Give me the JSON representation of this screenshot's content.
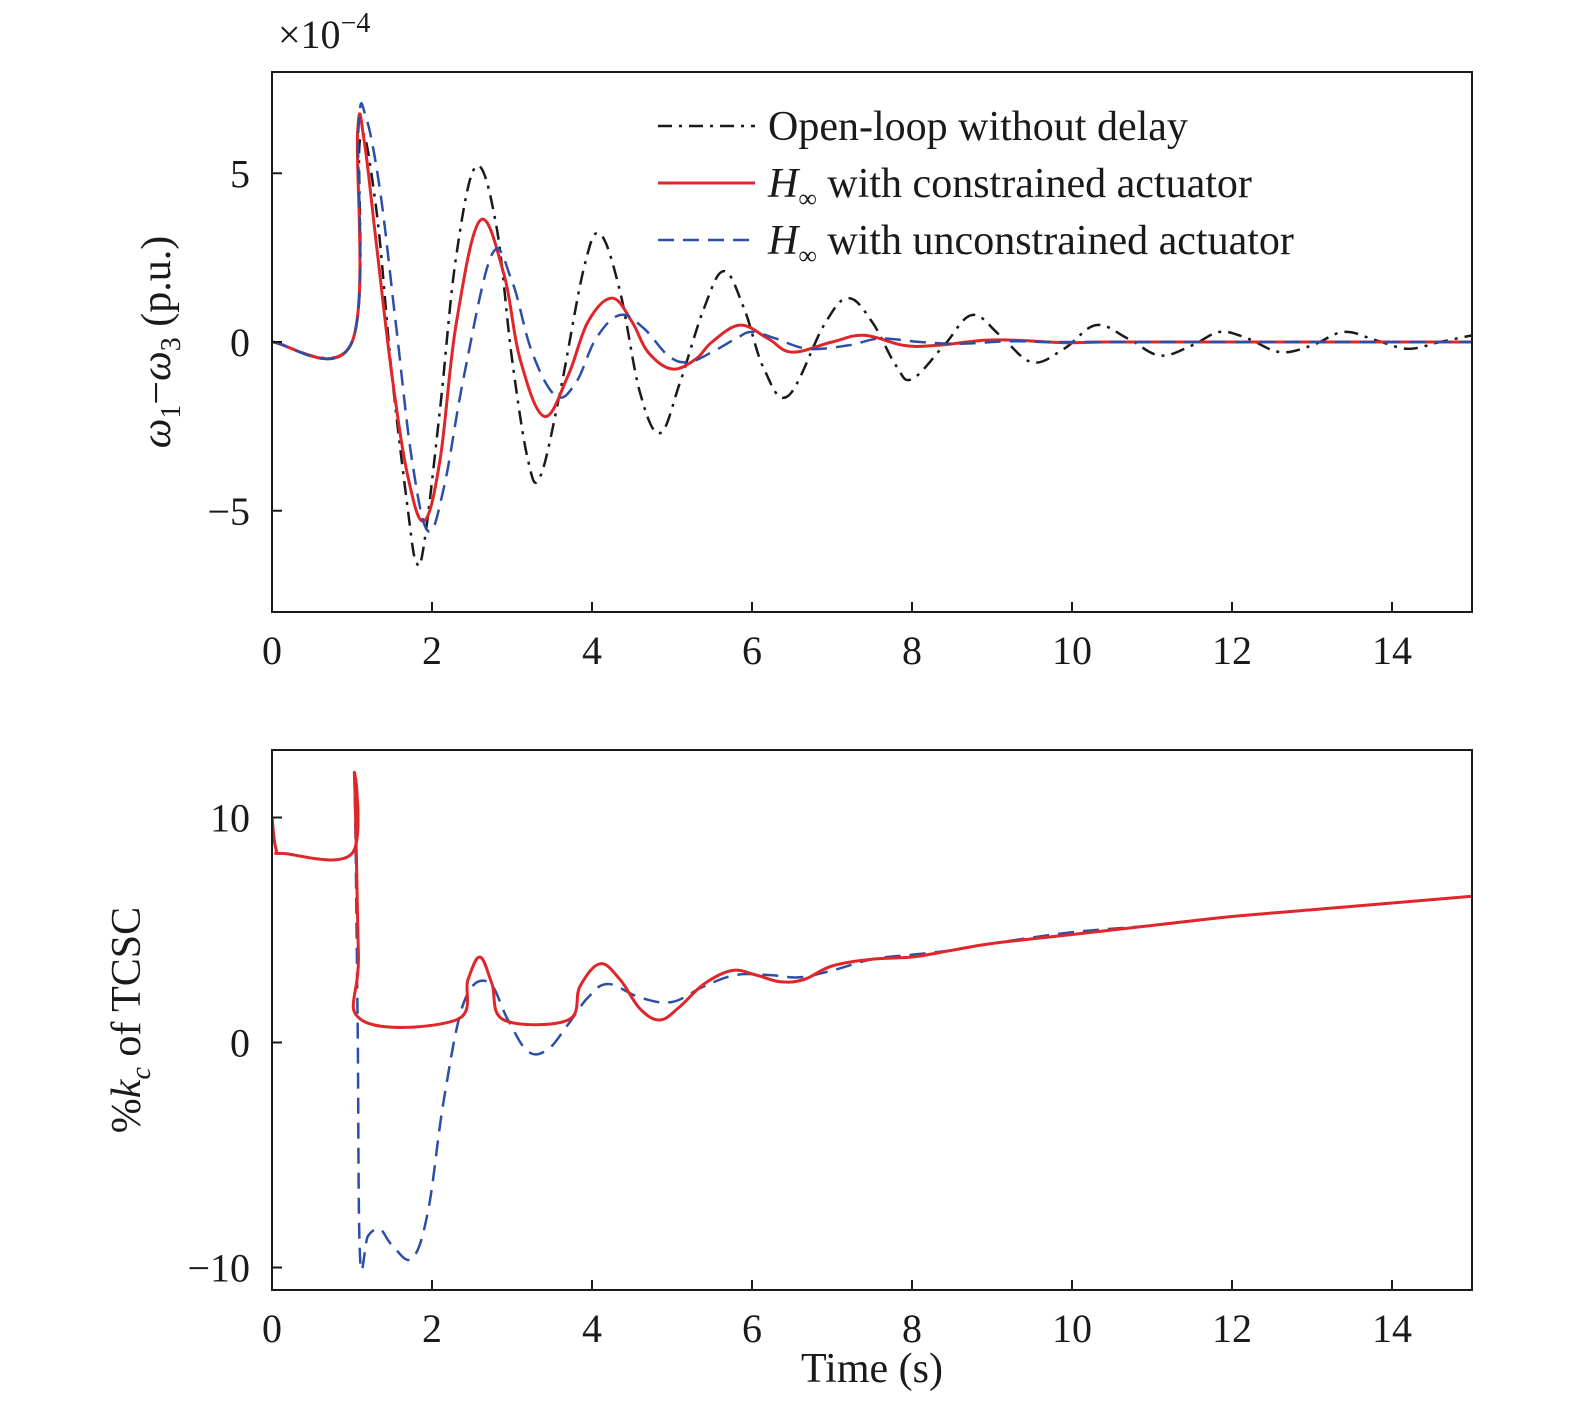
{
  "chart_data": [
    {
      "type": "line",
      "ylabel": "ω1−ω3 (p.u.)",
      "ylabel_parts": {
        "a": "ω",
        "a_sub": "1",
        "dash": "−",
        "b": "ω",
        "b_sub": "3",
        "unit": " (p.u.)"
      },
      "y_multiplier_text": {
        "base": "×10",
        "exp": "−4"
      },
      "xlim": [
        0,
        15
      ],
      "ylim": [
        -8,
        8
      ],
      "xticks": [
        0,
        2,
        4,
        6,
        8,
        10,
        12,
        14
      ],
      "xtick_labels": [
        "0",
        "2",
        "4",
        "6",
        "8",
        "10",
        "12",
        "14"
      ],
      "yticks": [
        -5,
        0,
        5
      ],
      "ytick_labels": [
        "−5",
        "0",
        "5"
      ],
      "grid": false,
      "legend_position": "top-right",
      "series": [
        {
          "name": "Open-loop without delay",
          "legend_label": {
            "text": "Open-loop without delay"
          },
          "color": "#1a1a1a",
          "dash": "dashdot",
          "x": [
            0,
            1.0,
            1.1,
            1.3,
            1.5,
            1.7,
            1.8,
            1.9,
            2.1,
            2.3,
            2.55,
            2.8,
            3.0,
            3.2,
            3.35,
            3.6,
            3.9,
            4.1,
            4.35,
            4.6,
            4.85,
            5.1,
            5.4,
            5.65,
            5.9,
            6.15,
            6.45,
            6.9,
            7.2,
            7.5,
            7.8,
            8.0,
            8.4,
            8.75,
            9.1,
            9.5,
            9.9,
            10.3,
            10.7,
            11.1,
            11.5,
            11.85,
            12.2,
            12.6,
            13.0,
            13.4,
            13.8,
            14.2,
            14.6,
            15.0
          ],
          "y": [
            0,
            0,
            6.0,
            4.0,
            -1.0,
            -5.0,
            -6.5,
            -6.0,
            -2.0,
            2.5,
            5.2,
            3.5,
            -0.5,
            -3.5,
            -4.0,
            -1.5,
            2.2,
            3.2,
            1.5,
            -1.5,
            -2.7,
            -1.2,
            1.0,
            2.1,
            1.0,
            -0.8,
            -1.6,
            0.5,
            1.3,
            0.6,
            -0.7,
            -1.1,
            -0.1,
            0.8,
            0.2,
            -0.6,
            -0.2,
            0.5,
            0.1,
            -0.4,
            -0.1,
            0.3,
            0.1,
            -0.3,
            -0.1,
            0.3,
            0.05,
            -0.2,
            0.0,
            0.2
          ]
        },
        {
          "name": "H∞ with constrained actuator",
          "legend_label": {
            "sym": "H",
            "sub": "∞",
            "text": " with constrained actuator"
          },
          "color": "#e0262a",
          "dash": "solid",
          "x": [
            0,
            1.0,
            1.07,
            1.15,
            1.3,
            1.5,
            1.7,
            1.9,
            2.1,
            2.3,
            2.6,
            2.9,
            3.1,
            3.4,
            3.7,
            3.95,
            4.25,
            4.5,
            4.7,
            5.0,
            5.3,
            5.5,
            5.85,
            6.2,
            6.5,
            7.0,
            7.4,
            7.9,
            8.3,
            8.9,
            9.3,
            9.9,
            10.4,
            11.0,
            11.5,
            12.0,
            12.5,
            13.0,
            13.5,
            14.0,
            14.5,
            15.0
          ],
          "y": [
            0,
            0,
            6.2,
            6.0,
            3.0,
            -1.0,
            -4.0,
            -5.3,
            -3.5,
            0.5,
            3.6,
            2.0,
            -0.5,
            -2.2,
            -1.0,
            0.6,
            1.3,
            0.6,
            -0.3,
            -0.8,
            -0.5,
            0.0,
            0.5,
            0.1,
            -0.3,
            0.0,
            0.2,
            -0.1,
            -0.1,
            0.05,
            0.05,
            -0.02,
            0.0,
            0.0,
            0.0,
            0.0,
            0.0,
            0.0,
            0.0,
            0.0,
            0.0,
            0.0
          ]
        },
        {
          "name": "H∞ with unconstrained actuator",
          "legend_label": {
            "sym": "H",
            "sub": "∞",
            "text": " with unconstrained actuator"
          },
          "color": "#2b4fa8",
          "dash": "dashed",
          "x": [
            0,
            1.0,
            1.08,
            1.17,
            1.35,
            1.55,
            1.75,
            1.95,
            2.15,
            2.4,
            2.75,
            3.0,
            3.25,
            3.55,
            3.8,
            4.05,
            4.35,
            4.65,
            4.95,
            5.2,
            5.5,
            5.8,
            6.0,
            6.3,
            6.7,
            7.2,
            7.6,
            8.1,
            8.6,
            9.2,
            9.7,
            10.3,
            11.0,
            12.0,
            13.0,
            14.0,
            15.0
          ],
          "y": [
            0,
            0,
            6.3,
            6.7,
            4.5,
            0.5,
            -3.5,
            -5.6,
            -4.3,
            -1.0,
            2.6,
            1.8,
            -0.3,
            -1.6,
            -1.2,
            0.1,
            0.8,
            0.4,
            -0.4,
            -0.6,
            -0.3,
            0.1,
            0.3,
            0.1,
            -0.2,
            -0.1,
            0.1,
            0.0,
            -0.05,
            0.02,
            0.0,
            0.0,
            0.0,
            0.0,
            0.0,
            0.0,
            0.0
          ]
        }
      ]
    },
    {
      "type": "line",
      "ylabel": "%kc of TCSC",
      "ylabel_parts": {
        "pct": "%",
        "k": "k",
        "k_sub": "c",
        "rest": " of TCSC"
      },
      "xlabel": "Time (s)",
      "xlim": [
        0,
        15
      ],
      "ylim": [
        -11,
        13
      ],
      "xticks": [
        0,
        2,
        4,
        6,
        8,
        10,
        12,
        14
      ],
      "xtick_labels": [
        "0",
        "2",
        "4",
        "6",
        "8",
        "10",
        "12",
        "14"
      ],
      "yticks": [
        -10,
        0,
        10
      ],
      "ytick_labels": [
        "−10",
        "0",
        "10"
      ],
      "grid": false,
      "series": [
        {
          "name": "H∞ with unconstrained actuator",
          "color": "#2b4fa8",
          "dash": "dashed",
          "x": [
            0,
            0.05,
            0.15,
            1.0,
            1.03,
            1.07,
            1.1,
            1.2,
            1.35,
            1.5,
            1.75,
            1.95,
            2.15,
            2.4,
            2.7,
            2.95,
            3.2,
            3.45,
            3.7,
            3.95,
            4.2,
            4.6,
            5.0,
            5.4,
            5.8,
            6.2,
            6.6,
            7.0,
            7.5,
            8.0,
            8.5,
            9.0,
            10.0,
            11.0,
            12.0,
            13.0,
            14.0,
            15.0
          ],
          "y": [
            10.0,
            8.6,
            8.4,
            8.4,
            11.8,
            1.0,
            -9.5,
            -8.6,
            -8.3,
            -9.0,
            -9.6,
            -7.5,
            -2.5,
            1.8,
            2.7,
            1.0,
            -0.4,
            -0.3,
            0.8,
            2.0,
            2.6,
            2.0,
            1.8,
            2.5,
            3.0,
            3.0,
            2.9,
            3.2,
            3.7,
            3.9,
            4.1,
            4.4,
            4.9,
            5.2,
            5.6,
            5.9,
            6.2,
            6.5
          ]
        },
        {
          "name": "H∞ with constrained actuator",
          "color": "#e0262a",
          "dash": "solid",
          "x": [
            0,
            0.05,
            0.15,
            1.0,
            1.03,
            1.08,
            1.12,
            2.3,
            2.45,
            2.6,
            2.75,
            2.9,
            3.7,
            3.85,
            4.1,
            4.35,
            4.6,
            4.85,
            5.1,
            5.4,
            5.75,
            6.05,
            6.35,
            6.65,
            7.0,
            7.5,
            8.0,
            8.5,
            9.0,
            10.0,
            11.0,
            12.0,
            13.0,
            14.0,
            15.0
          ],
          "y": [
            10.0,
            8.6,
            8.4,
            8.4,
            11.9,
            4.0,
            1.0,
            1.0,
            2.8,
            3.8,
            2.6,
            1.0,
            1.0,
            2.5,
            3.5,
            2.8,
            1.5,
            1.0,
            1.6,
            2.6,
            3.2,
            3.0,
            2.7,
            2.8,
            3.4,
            3.7,
            3.8,
            4.1,
            4.4,
            4.8,
            5.2,
            5.6,
            5.9,
            6.2,
            6.5
          ]
        }
      ]
    }
  ]
}
